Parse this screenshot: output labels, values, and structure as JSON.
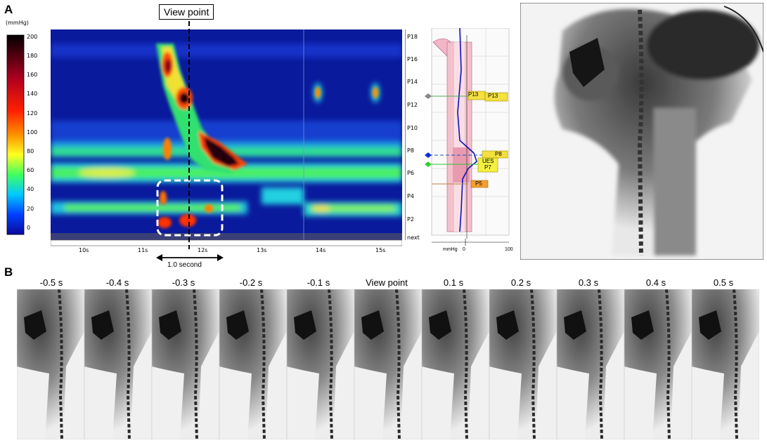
{
  "panel_a": {
    "letter": "A",
    "view_point_label": "View point",
    "colorbar": {
      "unit": "(mmHg)",
      "ticks": [
        "200",
        "180",
        "160",
        "140",
        "120",
        "100",
        "80",
        "60",
        "40",
        "20",
        "0"
      ]
    },
    "x_ticks": [
      "10s",
      "11s",
      "12s",
      "13s",
      "14s",
      "15s"
    ],
    "sensor_labels": [
      "P18",
      "P16",
      "P14",
      "P12",
      "P10",
      "P8",
      "P6",
      "P4",
      "P2",
      "next"
    ],
    "scale_bar_label": "1.0 second",
    "profile": {
      "markers": [
        "P13",
        "P13",
        "P8",
        "UES",
        "P7",
        "P5"
      ],
      "axis_labels": [
        "mmHg",
        "0",
        "100"
      ]
    }
  },
  "panel_b": {
    "letter": "B",
    "time_labels": [
      "-0.5 s",
      "-0.4 s",
      "-0.3 s",
      "-0.2 s",
      "-0.1 s",
      "View point",
      "0.1 s",
      "0.2 s",
      "0.3 s",
      "0.4 s",
      "0.5 s"
    ]
  }
}
